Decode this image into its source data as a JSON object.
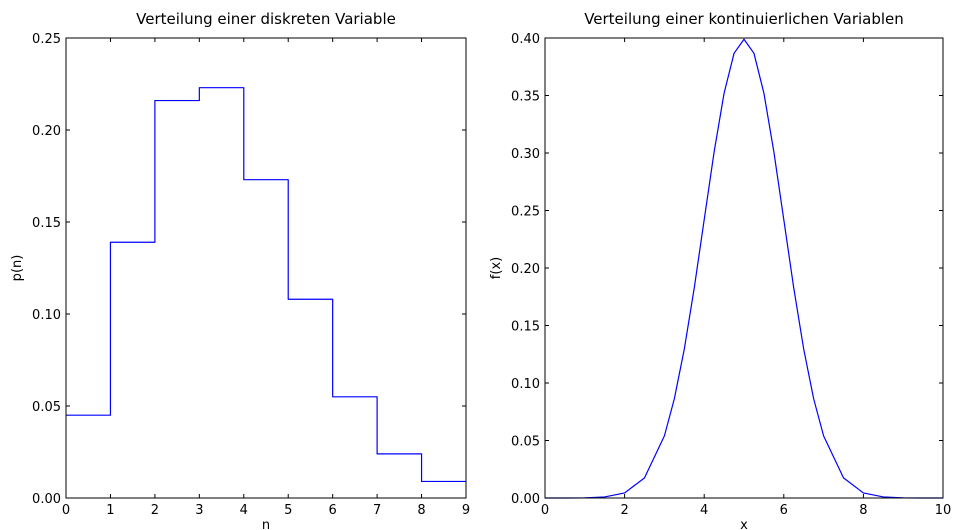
{
  "colors": {
    "line": "#0000ff",
    "axes": "#000000",
    "background": "#ffffff"
  },
  "chart_data": [
    {
      "type": "line",
      "style": "step",
      "title": "Verteilung einer diskreten Variable",
      "xlabel": "n",
      "ylabel": "p(n)",
      "xlim": [
        0,
        9
      ],
      "ylim": [
        0,
        0.25
      ],
      "xticks": [
        "0",
        "1",
        "2",
        "3",
        "4",
        "5",
        "6",
        "7",
        "8",
        "9"
      ],
      "yticks": [
        "0.00",
        "0.05",
        "0.10",
        "0.15",
        "0.20",
        "0.25"
      ],
      "grid": false,
      "legend": "none",
      "x": [
        0,
        1,
        2,
        3,
        4,
        5,
        6,
        7,
        8
      ],
      "values": [
        0.045,
        0.139,
        0.216,
        0.223,
        0.173,
        0.108,
        0.055,
        0.024,
        0.009
      ]
    },
    {
      "type": "line",
      "title": "Verteilung einer kontinuierlichen Variablen",
      "xlabel": "x",
      "ylabel": "f(x)",
      "xlim": [
        0,
        10
      ],
      "ylim": [
        0,
        0.4
      ],
      "xticks": [
        "0",
        "2",
        "4",
        "6",
        "8",
        "10"
      ],
      "yticks": [
        "0.00",
        "0.05",
        "0.10",
        "0.15",
        "0.20",
        "0.25",
        "0.30",
        "0.35",
        "0.40"
      ],
      "grid": false,
      "legend": "none",
      "x": [
        0,
        0.5,
        1,
        1.5,
        2,
        2.5,
        3,
        3.25,
        3.5,
        3.75,
        4,
        4.25,
        4.5,
        4.75,
        5,
        5.25,
        5.5,
        5.75,
        6,
        6.25,
        6.5,
        6.75,
        7,
        7.5,
        8,
        8.5,
        9,
        9.5,
        10
      ],
      "values": [
        0.0,
        0.0,
        0.0001,
        0.0009,
        0.0044,
        0.0175,
        0.054,
        0.0863,
        0.1295,
        0.1826,
        0.242,
        0.3011,
        0.3521,
        0.3867,
        0.3989,
        0.3867,
        0.3521,
        0.3011,
        0.242,
        0.1826,
        0.1295,
        0.0863,
        0.054,
        0.0175,
        0.0044,
        0.0009,
        0.0001,
        0.0,
        0.0
      ]
    }
  ]
}
